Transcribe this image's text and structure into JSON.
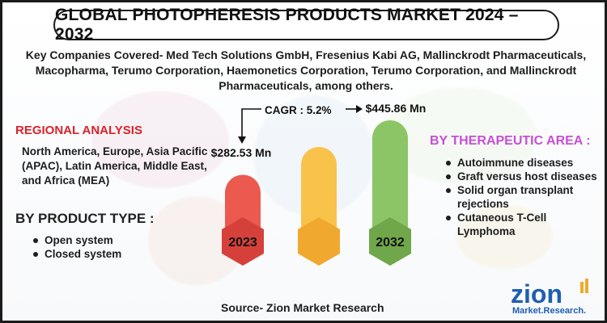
{
  "title": "GLOBAL PHOTOPHERESIS PRODUCTS MARKET 2024 – 2032",
  "companies": "Key Companies Covered- Med Tech Solutions GmbH, Fresenius Kabi AG, Mallinckrodt Pharmaceuticals, Macopharma, Terumo Corporation, Haemonetics Corporation, Terumo Corporation, and Mallinckrodt Pharmaceuticals, among others.",
  "regional": {
    "heading": "REGIONAL ANALYSIS",
    "text": "North America, Europe, Asia Pacific (APAC), Latin America, Middle East, and Africa (MEA)"
  },
  "product_type": {
    "heading": "BY PRODUCT TYPE :",
    "items": [
      "Open system",
      "Closed system"
    ]
  },
  "therapeutic_area": {
    "heading": "BY THERAPEUTIC AREA :",
    "items": [
      "Autoimmune diseases",
      "Graft versus host diseases",
      "Solid organ transplant rejections",
      "Cutaneous T-Cell Lymphoma"
    ]
  },
  "source": "Source- Zion Market Research",
  "logo": {
    "brand": "zion",
    "sub": "Market.Research."
  },
  "chart_data": {
    "type": "bar",
    "categories": [
      "2023",
      "",
      "2032"
    ],
    "value_labels": [
      "$282.53 Mn",
      "",
      "$445.86 Mn"
    ],
    "cagr": "CAGR : 5.2%",
    "relative_heights": [
      0.55,
      0.78,
      1.0
    ],
    "colors": [
      "#ec5a4f",
      "#f9c24a",
      "#8cc565"
    ],
    "hex_colors": [
      "#d5413a",
      "#f0a92e",
      "#6fa74a"
    ]
  },
  "colors": {
    "regional_heading": "#d7242a",
    "therapy_heading": "#c64fd6",
    "border": "#1b1b1b"
  }
}
